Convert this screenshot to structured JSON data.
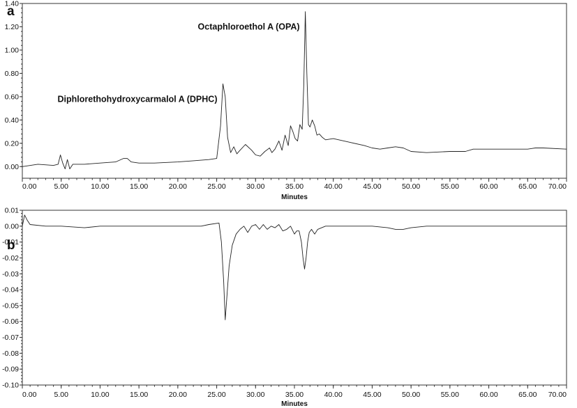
{
  "chart_data": [
    {
      "type": "line",
      "panel_label": "a",
      "xlabel": "Minutes",
      "ylabel": "",
      "xlim": [
        0,
        70
      ],
      "ylim": [
        -0.1,
        1.4
      ],
      "x_ticks": [
        "0.00",
        "5.00",
        "10.00",
        "15.00",
        "20.00",
        "25.00",
        "30.00",
        "35.00",
        "40.00",
        "45.00",
        "50.00",
        "55.00",
        "60.00",
        "65.00",
        "70.00"
      ],
      "y_ticks": [
        "0.00",
        "0.20",
        "0.40",
        "0.60",
        "0.80",
        "1.00",
        "1.20",
        "1.40"
      ],
      "annotations": [
        {
          "text": "Octaphloroethol A (OPA)",
          "x": 36.4,
          "y": 1.33
        },
        {
          "text": "Diphlorethohydroxycarmalol A (DPHC)",
          "x": 25.8,
          "y": 0.71
        }
      ],
      "series": [
        {
          "x": [
            0,
            2,
            4,
            4.6,
            4.9,
            5.2,
            5.5,
            5.8,
            6.1,
            6.5,
            8,
            10,
            12,
            13,
            13.5,
            14,
            15,
            17,
            20,
            22,
            24,
            25,
            25.5,
            25.8,
            26.1,
            26.4,
            26.8,
            27.2,
            27.6,
            28,
            28.7,
            29.5,
            30,
            30.6,
            31.2,
            31.8,
            32.1,
            32.5,
            33,
            33.4,
            33.8,
            34.2,
            34.5,
            34.8,
            35.1,
            35.4,
            35.7,
            36,
            36.2,
            36.4,
            36.6,
            36.8,
            37,
            37.3,
            37.6,
            37.9,
            38.2,
            38.6,
            39,
            40,
            42,
            44,
            45,
            46,
            47,
            48,
            49,
            50,
            52,
            55,
            57,
            58,
            60,
            62,
            65,
            66,
            67,
            70
          ],
          "y": [
            0.0,
            0.02,
            0.01,
            0.02,
            0.1,
            0.03,
            -0.02,
            0.06,
            -0.02,
            0.02,
            0.02,
            0.03,
            0.04,
            0.07,
            0.07,
            0.04,
            0.03,
            0.03,
            0.04,
            0.05,
            0.06,
            0.07,
            0.35,
            0.71,
            0.6,
            0.25,
            0.12,
            0.17,
            0.11,
            0.14,
            0.19,
            0.14,
            0.1,
            0.09,
            0.13,
            0.16,
            0.12,
            0.15,
            0.22,
            0.14,
            0.27,
            0.18,
            0.35,
            0.3,
            0.24,
            0.22,
            0.36,
            0.32,
            0.7,
            1.33,
            0.8,
            0.36,
            0.34,
            0.4,
            0.35,
            0.27,
            0.28,
            0.25,
            0.23,
            0.24,
            0.21,
            0.18,
            0.16,
            0.15,
            0.16,
            0.17,
            0.16,
            0.13,
            0.12,
            0.13,
            0.13,
            0.15,
            0.15,
            0.15,
            0.15,
            0.16,
            0.16,
            0.15
          ]
        }
      ]
    },
    {
      "type": "line",
      "panel_label": "b",
      "xlabel": "Minutes",
      "ylabel": "",
      "xlim": [
        0,
        70
      ],
      "ylim": [
        -0.1,
        0.01
      ],
      "x_ticks": [
        "0.00",
        "5.00",
        "10.00",
        "15.00",
        "20.00",
        "25.00",
        "30.00",
        "35.00",
        "40.00",
        "45.00",
        "50.00",
        "55.00",
        "60.00",
        "65.00",
        "70.00"
      ],
      "y_ticks": [
        "0.01",
        "0.00",
        "-0.01",
        "-0.02",
        "-0.03",
        "-0.04",
        "-0.05",
        "-0.06",
        "-0.07",
        "-0.08",
        "-0.09",
        "-0.10"
      ],
      "series": [
        {
          "x": [
            0,
            0.3,
            0.6,
            1,
            3,
            5,
            8,
            10,
            15,
            20,
            23,
            24,
            25.3,
            25.6,
            25.9,
            26.1,
            26.3,
            26.6,
            27,
            27.5,
            28,
            28.5,
            29,
            29.5,
            30,
            30.5,
            31,
            31.5,
            32,
            32.5,
            33,
            33.5,
            34,
            34.5,
            35,
            35.3,
            35.6,
            35.9,
            36.1,
            36.3,
            36.5,
            36.7,
            36.9,
            37.2,
            37.6,
            38,
            38.5,
            39,
            40,
            42,
            45,
            47,
            48,
            49,
            50,
            52,
            55,
            58,
            60,
            62,
            65,
            67,
            70
          ],
          "y": [
            0.0,
            0.007,
            0.004,
            0.001,
            0.0,
            0.0,
            -0.001,
            0.0,
            0.0,
            0.0,
            0.0,
            0.001,
            0.002,
            -0.01,
            -0.035,
            -0.059,
            -0.045,
            -0.025,
            -0.012,
            -0.005,
            -0.002,
            0.0,
            -0.004,
            0.0,
            0.001,
            -0.002,
            0.001,
            -0.002,
            0.0,
            -0.001,
            0.001,
            -0.003,
            -0.002,
            0.0,
            -0.005,
            -0.003,
            -0.003,
            -0.01,
            -0.02,
            -0.027,
            -0.02,
            -0.01,
            -0.004,
            -0.002,
            -0.005,
            -0.002,
            -0.001,
            0.0,
            0.0,
            0.0,
            0.0,
            -0.001,
            -0.002,
            -0.002,
            -0.001,
            0.0,
            0.0,
            0.0,
            0.0,
            0.0,
            0.0,
            0.0,
            0.0
          ]
        }
      ]
    }
  ]
}
